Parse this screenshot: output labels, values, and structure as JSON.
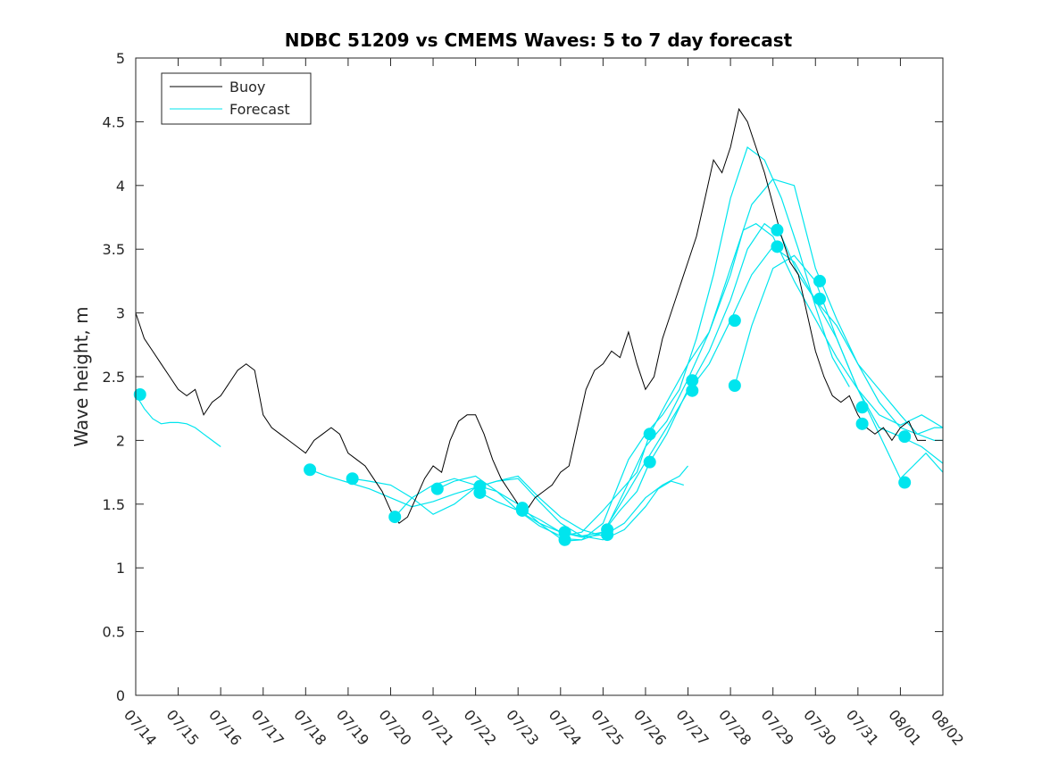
{
  "chart_data": {
    "type": "line",
    "title": "NDBC 51209 vs CMEMS Waves: 5 to 7 day forecast",
    "xlabel": "",
    "ylabel": "Wave height, m",
    "xlim": [
      "07/14",
      "08/02"
    ],
    "ylim": [
      0,
      5
    ],
    "yticks": [
      0,
      0.5,
      1,
      1.5,
      2,
      2.5,
      3,
      3.5,
      4,
      4.5,
      5
    ],
    "ytick_labels": [
      "0",
      "0.5",
      "1",
      "1.5",
      "2",
      "2.5",
      "3",
      "3.5",
      "4",
      "4.5",
      "5"
    ],
    "xtick_labels": [
      "07/14",
      "07/15",
      "07/16",
      "07/17",
      "07/18",
      "07/19",
      "07/20",
      "07/21",
      "07/22",
      "07/23",
      "07/24",
      "07/25",
      "07/26",
      "07/27",
      "07/28",
      "07/29",
      "07/30",
      "07/31",
      "08/01",
      "08/02"
    ],
    "grid": false,
    "legend": {
      "position": "top-left",
      "entries": [
        {
          "label": "Buoy",
          "color": "#000000"
        },
        {
          "label": "Forecast",
          "color": "#00e5ee"
        }
      ]
    },
    "colors": {
      "buoy": "#000000",
      "forecast": "#00e5ee"
    },
    "buoy": {
      "name": "Buoy",
      "day": [
        0.0,
        0.2,
        0.4,
        0.6,
        0.8,
        1.0,
        1.2,
        1.4,
        1.6,
        1.8,
        2.0,
        2.2,
        2.4,
        2.6,
        2.8,
        3.0,
        3.2,
        3.4,
        3.6,
        3.8,
        4.0,
        4.2,
        4.4,
        4.6,
        4.8,
        5.0,
        5.2,
        5.4,
        5.6,
        5.8,
        6.0,
        6.2,
        6.4,
        6.6,
        6.8,
        7.0,
        7.2,
        7.4,
        7.6,
        7.8,
        8.0,
        8.2,
        8.4,
        8.6,
        8.8,
        9.0,
        9.2,
        9.4,
        9.6,
        9.8,
        10.0,
        10.2,
        10.4,
        10.6,
        10.8,
        11.0,
        11.2,
        11.4,
        11.6,
        11.8,
        12.0,
        12.2,
        12.4,
        12.6,
        12.8,
        13.0,
        13.2,
        13.4,
        13.6,
        13.8,
        14.0,
        14.2,
        14.4,
        14.6,
        14.8,
        15.0,
        15.2,
        15.4,
        15.6,
        15.8,
        16.0,
        16.2,
        16.4,
        16.6,
        16.8,
        17.0,
        17.2,
        17.4,
        17.6,
        17.8,
        18.0,
        18.2,
        18.4,
        18.6
      ],
      "values": [
        3.0,
        2.8,
        2.7,
        2.6,
        2.5,
        2.4,
        2.35,
        2.4,
        2.2,
        2.3,
        2.35,
        2.45,
        2.55,
        2.6,
        2.55,
        2.2,
        2.1,
        2.05,
        2.0,
        1.95,
        1.9,
        2.0,
        2.05,
        2.1,
        2.05,
        1.9,
        1.85,
        1.8,
        1.7,
        1.6,
        1.45,
        1.35,
        1.4,
        1.55,
        1.7,
        1.8,
        1.75,
        2.0,
        2.15,
        2.2,
        2.2,
        2.05,
        1.85,
        1.7,
        1.6,
        1.5,
        1.45,
        1.55,
        1.6,
        1.65,
        1.75,
        1.8,
        2.1,
        2.4,
        2.55,
        2.6,
        2.7,
        2.65,
        2.85,
        2.6,
        2.4,
        2.5,
        2.8,
        3.0,
        3.2,
        3.4,
        3.6,
        3.9,
        4.2,
        4.1,
        4.3,
        4.6,
        4.5,
        4.3,
        4.1,
        3.85,
        3.6,
        3.4,
        3.3,
        3.0,
        2.7,
        2.5,
        2.35,
        2.3,
        2.35,
        2.2,
        2.1,
        2.05,
        2.1,
        2.0,
        2.1,
        2.15,
        2.0,
        2.0
      ]
    },
    "forecast_series": [
      {
        "day": [
          0.0,
          0.2,
          0.4,
          0.6,
          0.8,
          1.0,
          1.2,
          1.4,
          1.6,
          1.8,
          2.0
        ],
        "values": [
          2.36,
          2.25,
          2.17,
          2.13,
          2.14,
          2.14,
          2.13,
          2.1,
          2.05,
          2.0,
          1.95
        ]
      },
      {
        "day": [
          4.1,
          4.5,
          5.0,
          5.5,
          6.0,
          6.5,
          7.0,
          7.5,
          8.0,
          8.5,
          9.0,
          9.5,
          10.0,
          10.5,
          11.0,
          11.5,
          12.0,
          12.3,
          12.6,
          12.9
        ],
        "values": [
          1.77,
          1.72,
          1.67,
          1.62,
          1.55,
          1.48,
          1.52,
          1.58,
          1.63,
          1.68,
          1.7,
          1.52,
          1.35,
          1.25,
          1.22,
          1.3,
          1.48,
          1.62,
          1.68,
          1.65
        ]
      },
      {
        "day": [
          5.1,
          5.5,
          6.0,
          6.5,
          7.0,
          7.5,
          8.0,
          8.5,
          9.0,
          9.5,
          10.0,
          10.5,
          11.0,
          11.5,
          12.0,
          12.4,
          12.8,
          13.0
        ],
        "values": [
          1.7,
          1.68,
          1.65,
          1.55,
          1.42,
          1.5,
          1.63,
          1.68,
          1.72,
          1.55,
          1.4,
          1.3,
          1.25,
          1.35,
          1.55,
          1.65,
          1.72,
          1.8
        ]
      },
      {
        "day": [
          6.1,
          6.5,
          7.0,
          7.5,
          8.0,
          8.5,
          9.0,
          9.5,
          10.0,
          10.5,
          11.0,
          11.3,
          11.6,
          12.0,
          12.4,
          12.8,
          13.2,
          13.6,
          14.0,
          14.4,
          14.8,
          15.2,
          15.6,
          16.0,
          16.4,
          16.8
        ],
        "values": [
          1.4,
          1.55,
          1.65,
          1.7,
          1.65,
          1.6,
          1.5,
          1.35,
          1.23,
          1.22,
          1.35,
          1.6,
          1.85,
          2.05,
          2.2,
          2.4,
          2.8,
          3.3,
          3.9,
          4.3,
          4.2,
          3.9,
          3.5,
          3.05,
          2.65,
          2.42
        ]
      },
      {
        "day": [
          7.1,
          7.5,
          8.0,
          8.5,
          9.0,
          9.5,
          10.0,
          10.5,
          11.0,
          11.4,
          11.8,
          12.1,
          12.5,
          13.0,
          13.5,
          14.0,
          14.5,
          15.0,
          15.5,
          16.0,
          16.5,
          17.0,
          17.5,
          18.0,
          18.4,
          18.8,
          19.0
        ],
        "values": [
          1.62,
          1.68,
          1.72,
          1.6,
          1.45,
          1.33,
          1.25,
          1.28,
          1.45,
          1.6,
          1.75,
          2.05,
          2.3,
          2.6,
          2.85,
          3.35,
          3.85,
          4.05,
          4.0,
          3.35,
          2.95,
          2.6,
          2.4,
          2.2,
          2.05,
          2.0,
          2.0
        ]
      },
      {
        "day": [
          8.1,
          8.5,
          9.0,
          9.5,
          10.0,
          10.5,
          11.0,
          11.4,
          11.8,
          12.1,
          12.5,
          13.0,
          13.5,
          14.0,
          14.4,
          14.8,
          15.2,
          15.6,
          16.0,
          16.5,
          17.0,
          17.5,
          18.0,
          18.4,
          18.8,
          19.0
        ],
        "values": [
          1.59,
          1.52,
          1.45,
          1.35,
          1.28,
          1.25,
          1.28,
          1.45,
          1.6,
          1.83,
          2.05,
          2.4,
          2.7,
          3.1,
          3.5,
          3.7,
          3.6,
          3.3,
          3.1,
          2.9,
          2.6,
          2.3,
          2.1,
          2.05,
          2.1,
          2.1
        ]
      },
      {
        "day": [
          9.1,
          9.5,
          10.0,
          10.5,
          11.0,
          11.5,
          12.0,
          12.5,
          13.0,
          13.5,
          14.0,
          14.3,
          14.6,
          15.0,
          15.5,
          16.0,
          16.5,
          17.0,
          17.5,
          18.0,
          18.5,
          19.0
        ],
        "values": [
          1.45,
          1.38,
          1.28,
          1.24,
          1.26,
          1.6,
          1.95,
          2.15,
          2.48,
          2.85,
          3.3,
          3.65,
          3.7,
          3.6,
          3.25,
          2.95,
          2.65,
          2.4,
          2.2,
          2.12,
          2.2,
          2.1
        ]
      },
      {
        "day": [
          10.1,
          10.5,
          11.0,
          11.5,
          12.0,
          12.5,
          13.0,
          13.5,
          14.0,
          14.5,
          15.0,
          15.5,
          16.0,
          16.5,
          17.0,
          17.5,
          18.0,
          18.5,
          19.0
        ],
        "values": [
          1.21,
          1.22,
          1.28,
          1.55,
          1.83,
          2.1,
          2.38,
          2.6,
          2.94,
          3.3,
          3.52,
          3.4,
          3.1,
          2.8,
          2.4,
          2.1,
          2.03,
          1.95,
          1.82
        ]
      },
      {
        "day": [
          14.1,
          14.5,
          15.0,
          15.5,
          16.0,
          16.5,
          17.0,
          17.5,
          18.0,
          18.3,
          18.6,
          19.0
        ],
        "values": [
          2.43,
          2.9,
          3.35,
          3.45,
          3.25,
          2.8,
          2.4,
          2.05,
          1.7,
          1.8,
          1.9,
          1.75
        ]
      }
    ],
    "forecast_markers": {
      "day": [
        0.1,
        4.1,
        5.1,
        6.1,
        7.1,
        8.1,
        8.1,
        9.1,
        9.1,
        10.1,
        10.1,
        11.1,
        11.1,
        12.1,
        12.1,
        13.1,
        13.1,
        14.1,
        14.1,
        15.1,
        15.1,
        16.1,
        16.1,
        17.1,
        17.1,
        18.1,
        18.1
      ],
      "values": [
        2.36,
        1.77,
        1.7,
        1.4,
        1.62,
        1.64,
        1.59,
        1.47,
        1.45,
        1.28,
        1.22,
        1.3,
        1.26,
        2.05,
        1.83,
        2.47,
        2.39,
        2.94,
        2.43,
        3.65,
        3.52,
        3.25,
        3.11,
        2.26,
        2.13,
        2.03,
        1.67
      ]
    }
  }
}
